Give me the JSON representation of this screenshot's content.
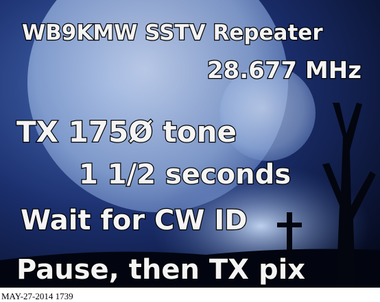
{
  "image": {
    "lines": [
      "WB9KMW SSTV Repeater",
      "28.677 MHz",
      "TX 175Ø tone",
      "1 1/2 seconds",
      "Wait for CW ID",
      "Pause, then TX pix"
    ],
    "timestamp": "MAY-27-2014 1739"
  }
}
